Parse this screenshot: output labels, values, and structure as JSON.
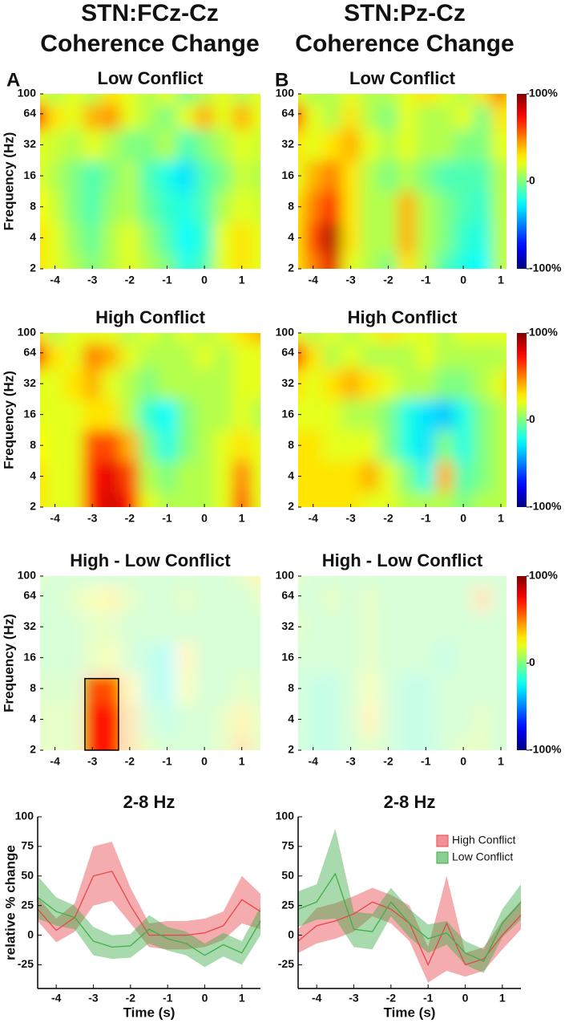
{
  "figure": {
    "columns": [
      [
        "STN:FCz-Cz",
        "Coherence Change"
      ],
      [
        "STN:Pz-Cz",
        "Coherence Change"
      ]
    ],
    "panel_labels": [
      "A",
      "B"
    ]
  },
  "chart_data": [
    {
      "type": "heatmap",
      "title": "Low Conflict",
      "ylabel": "Frequency (Hz)",
      "x": [
        -4.5,
        -4,
        -3.5,
        -3,
        -2.5,
        -2,
        -1.5,
        -1,
        -0.5,
        0,
        0.5,
        1,
        1.5
      ],
      "y": [
        2,
        4,
        8,
        16,
        32,
        64,
        100
      ],
      "values": [
        [
          30,
          20,
          10,
          0,
          10,
          20,
          10,
          0,
          -20,
          -10,
          20,
          30,
          20
        ],
        [
          30,
          20,
          5,
          -5,
          10,
          20,
          5,
          -10,
          -25,
          -15,
          20,
          30,
          20
        ],
        [
          25,
          15,
          0,
          -10,
          5,
          10,
          -5,
          -15,
          -20,
          -10,
          10,
          20,
          15
        ],
        [
          20,
          10,
          0,
          -10,
          0,
          10,
          -10,
          -20,
          -30,
          -10,
          0,
          15,
          10
        ],
        [
          20,
          15,
          10,
          20,
          10,
          0,
          0,
          10,
          -10,
          0,
          10,
          20,
          15
        ],
        [
          70,
          30,
          20,
          40,
          45,
          20,
          10,
          0,
          20,
          40,
          20,
          40,
          20
        ],
        [
          20,
          10,
          20,
          10,
          30,
          20,
          10,
          20,
          0,
          10,
          20,
          10,
          20
        ]
      ],
      "xlim": [
        -4.4,
        1.5
      ],
      "xticks": [
        -4,
        -3,
        -2,
        -1,
        0,
        1
      ],
      "ylim": [
        2,
        100
      ],
      "yticks": [
        2,
        4,
        8,
        16,
        32,
        64,
        100
      ],
      "log_y": true,
      "colormap": "jet",
      "zlim": [
        -100,
        100
      ]
    },
    {
      "type": "heatmap",
      "title": "Low Conflict",
      "x": [
        -4.5,
        -4,
        -3.5,
        -3,
        -2.5,
        -2,
        -1.5,
        -1,
        -0.5,
        0,
        0.5,
        1,
        1.5
      ],
      "y": [
        2,
        4,
        8,
        16,
        32,
        64,
        100
      ],
      "values": [
        [
          30,
          50,
          80,
          20,
          10,
          0,
          30,
          10,
          -10,
          -20,
          -25,
          10,
          20
        ],
        [
          30,
          60,
          90,
          30,
          10,
          10,
          40,
          10,
          0,
          -15,
          -20,
          10,
          20
        ],
        [
          30,
          50,
          70,
          30,
          10,
          10,
          40,
          10,
          0,
          -10,
          -15,
          10,
          20
        ],
        [
          20,
          40,
          50,
          30,
          10,
          0,
          10,
          0,
          -10,
          -10,
          -10,
          10,
          15
        ],
        [
          30,
          20,
          30,
          40,
          20,
          10,
          20,
          10,
          10,
          0,
          0,
          20,
          20
        ],
        [
          60,
          20,
          10,
          30,
          10,
          0,
          20,
          10,
          10,
          20,
          0,
          30,
          20
        ],
        [
          20,
          10,
          10,
          20,
          10,
          10,
          20,
          30,
          20,
          10,
          30,
          50,
          20
        ]
      ],
      "xlim": [
        -4.4,
        1.15
      ],
      "xticks": [
        -4,
        -3,
        -2,
        -1,
        0,
        1
      ],
      "ylim": [
        2,
        100
      ],
      "yticks": [
        2,
        4,
        8,
        16,
        32,
        64,
        100
      ],
      "log_y": true,
      "colormap": "jet",
      "zlim": [
        -100,
        100
      ],
      "colorbar": {
        "ticks": [
          {
            "value": 100,
            "label": "100%"
          },
          0,
          {
            "value": -100,
            "label": "-100%"
          }
        ]
      }
    },
    {
      "type": "heatmap",
      "title": "High Conflict",
      "ylabel": "Frequency (Hz)",
      "x": [
        -4.5,
        -4,
        -3.5,
        -3,
        -2.5,
        -2,
        -1.5,
        -1,
        -0.5,
        0,
        0.5,
        1,
        1.5
      ],
      "y": [
        2,
        4,
        8,
        16,
        32,
        64,
        100
      ],
      "values": [
        [
          30,
          20,
          20,
          70,
          85,
          70,
          20,
          10,
          10,
          10,
          20,
          60,
          20
        ],
        [
          30,
          20,
          20,
          70,
          80,
          60,
          10,
          0,
          10,
          10,
          20,
          50,
          20
        ],
        [
          25,
          20,
          20,
          60,
          60,
          40,
          0,
          -20,
          0,
          10,
          20,
          30,
          20
        ],
        [
          20,
          20,
          20,
          30,
          30,
          10,
          -15,
          -25,
          0,
          10,
          10,
          20,
          10
        ],
        [
          20,
          20,
          30,
          40,
          20,
          10,
          0,
          10,
          10,
          10,
          10,
          20,
          20
        ],
        [
          70,
          30,
          20,
          50,
          40,
          20,
          10,
          10,
          10,
          20,
          10,
          20,
          20
        ],
        [
          30,
          10,
          20,
          20,
          20,
          10,
          20,
          10,
          20,
          10,
          20,
          30,
          40
        ]
      ],
      "xlim": [
        -4.4,
        1.5
      ],
      "xticks": [
        -4,
        -3,
        -2,
        -1,
        0,
        1
      ],
      "ylim": [
        2,
        100
      ],
      "yticks": [
        2,
        4,
        8,
        16,
        32,
        64,
        100
      ],
      "log_y": true,
      "colormap": "jet",
      "zlim": [
        -100,
        100
      ]
    },
    {
      "type": "heatmap",
      "title": "High Conflict",
      "x": [
        -4.5,
        -4,
        -3.5,
        -3,
        -2.5,
        -2,
        -1.5,
        -1,
        -0.5,
        0,
        0.5,
        1,
        1.5
      ],
      "y": [
        2,
        4,
        8,
        16,
        32,
        64,
        100
      ],
      "values": [
        [
          30,
          30,
          30,
          30,
          20,
          20,
          10,
          10,
          10,
          0,
          10,
          10,
          20
        ],
        [
          30,
          30,
          30,
          30,
          40,
          20,
          0,
          -20,
          40,
          -10,
          0,
          10,
          20
        ],
        [
          30,
          30,
          20,
          20,
          20,
          0,
          -20,
          -30,
          0,
          -20,
          0,
          10,
          20
        ],
        [
          20,
          20,
          20,
          10,
          10,
          0,
          -20,
          -30,
          -35,
          -20,
          0,
          10,
          20
        ],
        [
          30,
          20,
          30,
          40,
          30,
          20,
          10,
          10,
          0,
          0,
          10,
          20,
          50
        ],
        [
          70,
          30,
          10,
          20,
          10,
          10,
          10,
          20,
          10,
          10,
          10,
          10,
          20
        ],
        [
          20,
          10,
          20,
          10,
          20,
          30,
          20,
          20,
          10,
          20,
          20,
          20,
          20
        ]
      ],
      "xlim": [
        -4.4,
        1.15
      ],
      "xticks": [
        -4,
        -3,
        -2,
        -1,
        0,
        1
      ],
      "ylim": [
        2,
        100
      ],
      "yticks": [
        2,
        4,
        8,
        16,
        32,
        64,
        100
      ],
      "log_y": true,
      "colormap": "jet",
      "zlim": [
        -100,
        100
      ],
      "colorbar": {
        "ticks": [
          {
            "value": 100,
            "label": "100%"
          },
          0,
          {
            "value": -100,
            "label": "-100%"
          }
        ]
      }
    },
    {
      "type": "heatmap",
      "title": "High - Low Conflict",
      "ylabel": "Frequency (Hz)",
      "x": [
        -4.5,
        -4,
        -3.5,
        -3,
        -2.5,
        -2,
        -1.5,
        -1,
        -0.5,
        0,
        0.5,
        1,
        1.5
      ],
      "y": [
        2,
        4,
        8,
        16,
        32,
        64,
        100
      ],
      "values": [
        [
          10,
          10,
          10,
          70,
          75,
          40,
          10,
          0,
          0,
          0,
          10,
          40,
          10
        ],
        [
          10,
          10,
          10,
          70,
          75,
          40,
          0,
          -10,
          0,
          0,
          10,
          30,
          10
        ],
        [
          5,
          5,
          5,
          60,
          60,
          30,
          -10,
          -20,
          20,
          0,
          0,
          10,
          5
        ],
        [
          0,
          0,
          0,
          10,
          20,
          0,
          -10,
          -20,
          30,
          0,
          0,
          0,
          0
        ],
        [
          0,
          0,
          0,
          10,
          10,
          0,
          0,
          0,
          0,
          0,
          0,
          0,
          0
        ],
        [
          0,
          0,
          10,
          20,
          30,
          10,
          0,
          0,
          10,
          0,
          0,
          0,
          10
        ],
        [
          10,
          0,
          0,
          0,
          0,
          0,
          0,
          0,
          0,
          0,
          0,
          10,
          30
        ]
      ],
      "xlim": [
        -4.4,
        1.5
      ],
      "xticks": [
        -4,
        -3,
        -2,
        -1,
        0,
        1
      ],
      "ylim": [
        2,
        100
      ],
      "yticks": [
        2,
        4,
        8,
        16,
        32,
        64,
        100
      ],
      "log_y": true,
      "colormap": "jet",
      "zlim": [
        -100,
        100
      ],
      "masked": true,
      "cluster_x": [
        -3.2,
        -2.3
      ],
      "cluster_y": [
        2,
        10
      ]
    },
    {
      "type": "heatmap",
      "title": "High - Low Conflict",
      "x": [
        -4.5,
        -4,
        -3.5,
        -3,
        -2.5,
        -2,
        -1.5,
        -1,
        -0.5,
        0,
        0.5,
        1,
        1.5
      ],
      "y": [
        2,
        4,
        8,
        16,
        32,
        64,
        100
      ],
      "values": [
        [
          0,
          -10,
          -10,
          0,
          10,
          0,
          -10,
          -10,
          0,
          10,
          10,
          0,
          0
        ],
        [
          0,
          -10,
          -10,
          0,
          30,
          0,
          -10,
          -10,
          0,
          0,
          10,
          0,
          0
        ],
        [
          0,
          -10,
          -10,
          0,
          20,
          0,
          -10,
          -10,
          0,
          0,
          0,
          0,
          0
        ],
        [
          0,
          0,
          0,
          0,
          10,
          0,
          0,
          0,
          -10,
          0,
          0,
          0,
          0
        ],
        [
          10,
          0,
          0,
          0,
          10,
          0,
          0,
          0,
          0,
          0,
          0,
          0,
          0
        ],
        [
          0,
          0,
          10,
          0,
          10,
          0,
          0,
          0,
          0,
          0,
          40,
          0,
          0
        ],
        [
          10,
          0,
          0,
          0,
          0,
          0,
          0,
          0,
          0,
          0,
          0,
          0,
          0
        ]
      ],
      "xlim": [
        -4.4,
        1.15
      ],
      "xticks": [
        -4,
        -3,
        -2,
        -1,
        0,
        1
      ],
      "ylim": [
        2,
        100
      ],
      "yticks": [
        2,
        4,
        8,
        16,
        32,
        64,
        100
      ],
      "log_y": true,
      "colormap": "jet",
      "zlim": [
        -100,
        100
      ],
      "masked": true,
      "colorbar": {
        "ticks": [
          {
            "value": 100,
            "label": "100%"
          },
          0,
          {
            "value": -100,
            "label": "-100%"
          }
        ]
      }
    },
    {
      "type": "line",
      "title": "2-8 Hz",
      "xlabel": "Time (s)",
      "ylabel": "relative % change",
      "x": [
        -4.5,
        -4,
        -3.5,
        -3,
        -2.5,
        -2,
        -1.5,
        -1,
        -0.5,
        0,
        0.5,
        1,
        1.5
      ],
      "series": [
        {
          "color": "#e8474c",
          "values": [
            22,
            4,
            15,
            50,
            54,
            25,
            0,
            0,
            0,
            2,
            8,
            30,
            20
          ],
          "error": [
            10,
            10,
            12,
            25,
            25,
            15,
            10,
            12,
            12,
            12,
            12,
            20,
            15
          ]
        },
        {
          "color": "#3fae49",
          "values": [
            32,
            20,
            15,
            -5,
            -10,
            -9,
            5,
            -3,
            -7,
            -17,
            -8,
            -15,
            12
          ],
          "error": [
            18,
            12,
            10,
            12,
            10,
            10,
            12,
            10,
            10,
            10,
            10,
            10,
            12
          ]
        }
      ],
      "xlim": [
        -4.5,
        1.5
      ],
      "ylim": [
        -45,
        100
      ],
      "xticks": [
        -4,
        -3,
        -2,
        -1,
        0,
        1
      ],
      "yticks": [
        -25,
        0,
        25,
        50,
        75,
        100
      ]
    },
    {
      "type": "line",
      "title": "2-8 Hz",
      "xlabel": "Time (s)",
      "x": [
        -4.5,
        -4,
        -3.5,
        -3,
        -2.5,
        -2,
        -1.5,
        -1,
        -0.5,
        0,
        0.5,
        1,
        1.5
      ],
      "series": [
        {
          "name": "High Conflict",
          "color": "#e8474c",
          "values": [
            -5,
            8,
            12,
            18,
            28,
            22,
            10,
            -25,
            10,
            -25,
            -20,
            0,
            17
          ],
          "error": [
            10,
            15,
            15,
            15,
            12,
            12,
            15,
            15,
            40,
            10,
            10,
            12,
            12
          ]
        },
        {
          "name": "Low Conflict",
          "color": "#3fae49",
          "values": [
            22,
            28,
            52,
            5,
            3,
            28,
            10,
            -3,
            2,
            -15,
            -22,
            10,
            28
          ],
          "error": [
            15,
            15,
            38,
            15,
            15,
            12,
            12,
            12,
            10,
            10,
            10,
            12,
            15
          ]
        }
      ],
      "xlim": [
        -4.5,
        1.5
      ],
      "ylim": [
        -45,
        100
      ],
      "xticks": [
        -4,
        -3,
        -2,
        -1,
        0,
        1
      ],
      "yticks": [
        -25,
        0,
        25,
        50,
        75,
        100
      ],
      "legend": "upper right"
    }
  ]
}
